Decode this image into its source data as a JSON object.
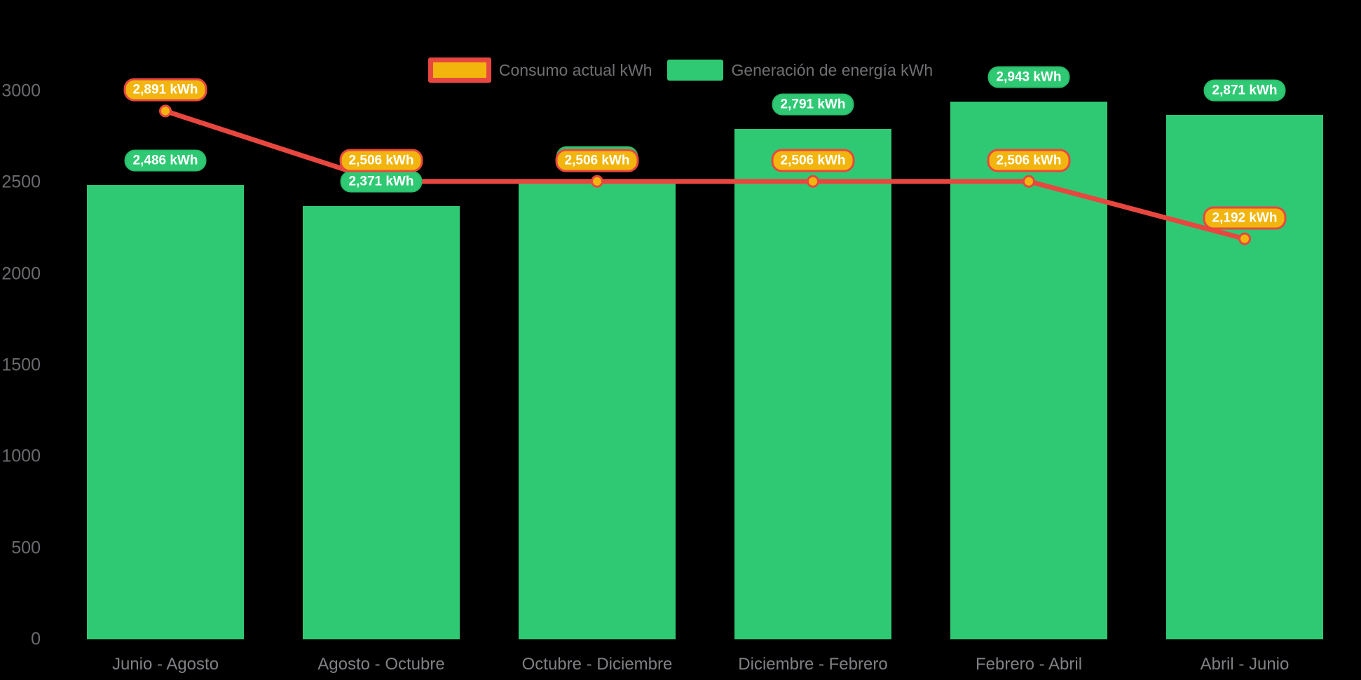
{
  "chart_data": {
    "type": "bar",
    "categories": [
      "Junio - Agosto",
      "Agosto - Octubre",
      "Octubre - Diciembre",
      "Diciembre - Febrero",
      "Febrero - Abril",
      "Abril - Junio"
    ],
    "series": [
      {
        "name": "Consumo actual kWh",
        "type": "line",
        "values": [
          2891,
          2506,
          2506,
          2506,
          2506,
          2192
        ],
        "labels": [
          "2,891 kWh",
          "2,506 kWh",
          "2,506 kWh",
          "2,506 kWh",
          "2,506 kWh",
          "2,192 kWh"
        ]
      },
      {
        "name": "Generación de energía kWh",
        "type": "bar",
        "values": [
          2486,
          2371,
          2506,
          2791,
          2943,
          2871
        ],
        "labels": [
          "2,486 kWh",
          "2,371 kWh",
          "2,506 kWh",
          "2,791 kWh",
          "2,943 kWh",
          "2,871 kWh"
        ]
      }
    ],
    "ylim": [
      0,
      3000
    ],
    "yticks": [
      0,
      500,
      1000,
      1500,
      2000,
      2500,
      3000
    ],
    "xlabel": "",
    "ylabel": "",
    "title": "",
    "grid": false,
    "legend_position": "top-center"
  },
  "colors": {
    "bar": "#2fc974",
    "bar_badge_border": "#29bb69",
    "line": "#e84740",
    "point_fill": "#f2b50d",
    "badge_text": "#ffffff",
    "y_label": "#6a6b6f",
    "x_label": "#7f8084",
    "legend_text": "#6f7073",
    "background": "#000000"
  }
}
